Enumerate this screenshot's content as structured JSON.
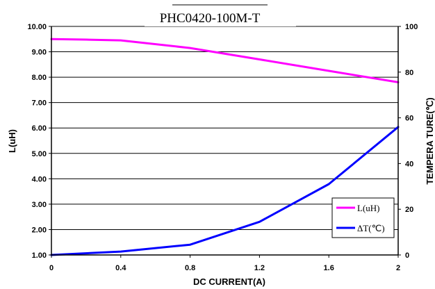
{
  "chart_data": {
    "type": "line",
    "title": "PHC0420-100M-T",
    "xlabel": "DC CURRENT(A)",
    "ylabel_left": "L(uH)",
    "ylabel_right": "TEMPERA TURE(℃)",
    "xlim": [
      0,
      2
    ],
    "ylim_left": [
      1,
      10
    ],
    "ylim_right": [
      0,
      100
    ],
    "x_ticks": [
      "0",
      "0.4",
      "0.8",
      "1.2",
      "1.6",
      "2"
    ],
    "y_left_ticks": [
      "1.00",
      "2.00",
      "3.00",
      "4.00",
      "5.00",
      "6.00",
      "7.00",
      "8.00",
      "9.00",
      "10.00"
    ],
    "y_right_ticks": [
      "0",
      "20",
      "40",
      "60",
      "80",
      "100"
    ],
    "grid": "horizontal",
    "legend_position": "bottom-right",
    "series": [
      {
        "name": "L(uH)",
        "axis": "left",
        "color": "#ff00ff",
        "x": [
          0,
          0.2,
          0.4,
          0.8,
          1.2,
          1.6,
          2.0
        ],
        "y": [
          9.5,
          9.48,
          9.45,
          9.15,
          8.7,
          8.25,
          7.8
        ]
      },
      {
        "name": "ΔT(℃)",
        "axis": "right",
        "color": "#0000ff",
        "x": [
          0,
          0.4,
          0.8,
          1.2,
          1.6,
          2.0
        ],
        "y": [
          0,
          1.5,
          4.5,
          14.5,
          31,
          56
        ]
      }
    ]
  }
}
